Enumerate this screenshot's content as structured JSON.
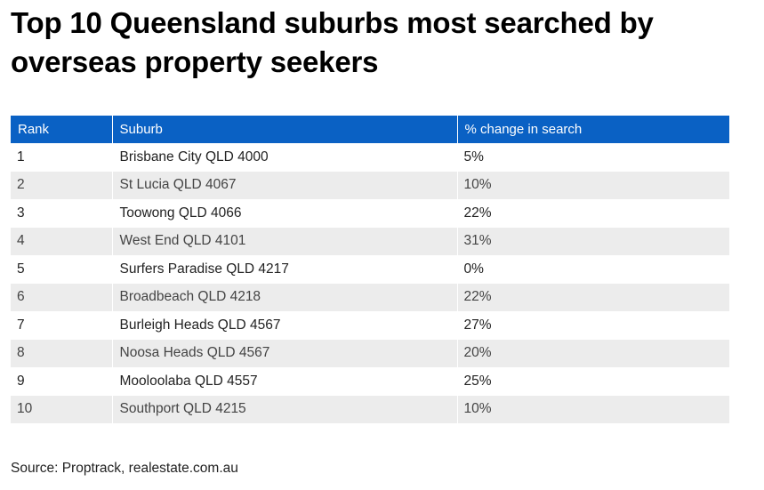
{
  "title": "Top 10 Queensland suburbs most searched by overseas property seekers",
  "colors": {
    "header_background": "#0a61c4",
    "header_text": "#ffffff",
    "alt_row_background": "#ececec"
  },
  "chart_data": {
    "type": "table",
    "title": "Top 10 Queensland suburbs most searched by overseas property seekers",
    "columns": [
      "Rank",
      "Suburb",
      "% change in search"
    ],
    "rows": [
      [
        "1",
        "Brisbane City QLD 4000",
        "5%"
      ],
      [
        "2",
        "St Lucia QLD 4067",
        "10%"
      ],
      [
        "3",
        "Toowong QLD 4066",
        "22%"
      ],
      [
        "4",
        "West End QLD 4101",
        "31%"
      ],
      [
        "5",
        "Surfers Paradise QLD 4217",
        "0%"
      ],
      [
        "6",
        "Broadbeach QLD 4218",
        "22%"
      ],
      [
        "7",
        "Burleigh Heads QLD 4567",
        "27%"
      ],
      [
        "8",
        "Noosa Heads QLD 4567",
        "20%"
      ],
      [
        "9",
        "Mooloolaba QLD 4557",
        "25%"
      ],
      [
        "10",
        "Southport QLD 4215",
        "10%"
      ]
    ]
  },
  "source": "Source: Proptrack, realestate.com.au"
}
